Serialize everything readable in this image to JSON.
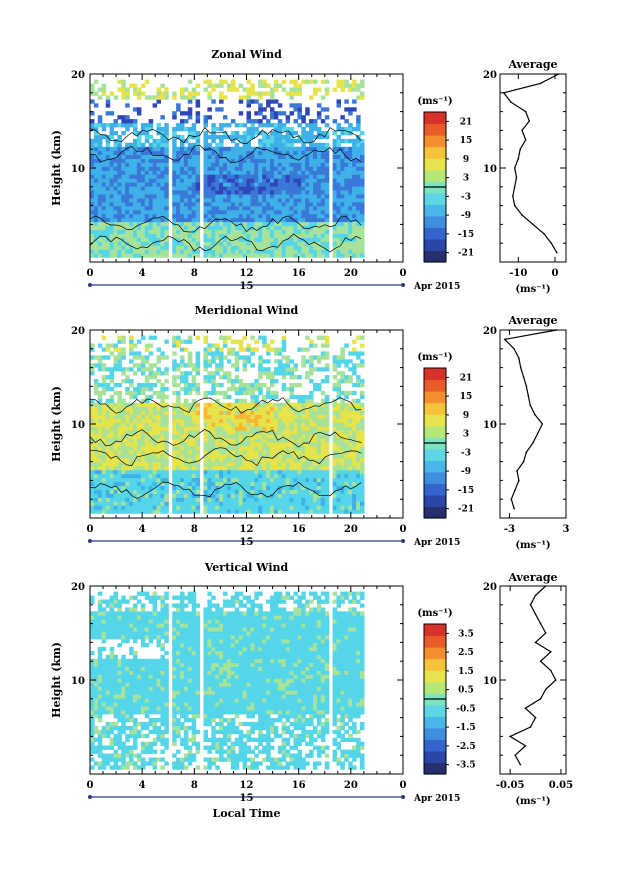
{
  "chart_data": [
    {
      "type": "heatmap",
      "title": "Zonal Wind",
      "ylabel": "Height (km)",
      "ylim": [
        0,
        20
      ],
      "y_ticks": [
        "20",
        "10"
      ],
      "x_ticks": [
        "0",
        "4",
        "8",
        "12",
        "16",
        "20",
        "0"
      ],
      "xlim": [
        0,
        24
      ],
      "date_label": "15",
      "month_label": "Apr 2015",
      "colorbar": {
        "unit_label": "(ms⁻¹)",
        "ticks": [
          "21",
          "15",
          "9",
          "3",
          "-3",
          "-9",
          "-15",
          "-21"
        ],
        "range": [
          -24,
          24
        ]
      },
      "average": {
        "title": "Average",
        "xlabel": "(ms⁻¹)",
        "x_ticks": [
          "-10",
          "0"
        ],
        "xlim": [
          -15,
          3
        ],
        "heights": [
          1,
          2,
          3,
          4,
          5,
          6,
          7,
          8,
          9,
          10,
          11,
          12,
          13,
          14,
          15,
          16,
          17,
          18,
          19,
          20
        ],
        "values": [
          0.5,
          -1,
          -3,
          -6,
          -9,
          -11,
          -11.5,
          -11,
          -10.5,
          -11,
          -10,
          -9.5,
          -8,
          -9,
          -7,
          -8,
          -12,
          -14,
          -4,
          1
        ]
      }
    },
    {
      "type": "heatmap",
      "title": "Meridional Wind",
      "ylabel": "Height (km)",
      "ylim": [
        0,
        20
      ],
      "y_ticks": [
        "20",
        "10"
      ],
      "x_ticks": [
        "0",
        "4",
        "8",
        "12",
        "16",
        "20",
        "0"
      ],
      "xlim": [
        0,
        24
      ],
      "date_label": "15",
      "month_label": "Apr 2015",
      "colorbar": {
        "unit_label": "(ms⁻¹)",
        "ticks": [
          "21",
          "15",
          "9",
          "3",
          "-3",
          "-9",
          "-15",
          "-21"
        ],
        "range": [
          -24,
          24
        ]
      },
      "average": {
        "title": "Average",
        "xlabel": "(ms⁻¹)",
        "x_ticks": [
          "-3",
          "3"
        ],
        "xlim": [
          -4,
          3
        ],
        "heights": [
          1,
          2,
          3,
          4,
          5,
          6,
          7,
          8,
          9,
          10,
          11,
          12,
          13,
          14,
          15,
          16,
          17,
          18,
          19,
          20
        ],
        "values": [
          -2.5,
          -2.8,
          -2.4,
          -2,
          -2.2,
          -1.5,
          -1.2,
          -0.5,
          0,
          0.5,
          -0.3,
          -0.8,
          -1,
          -1.2,
          -1.5,
          -1.8,
          -2,
          -2.5,
          -3.5,
          2
        ]
      }
    },
    {
      "type": "heatmap",
      "title": "Vertical Wind",
      "ylabel": "Height (km)",
      "xlabel": "Local Time",
      "ylim": [
        0,
        20
      ],
      "y_ticks": [
        "20",
        "10"
      ],
      "x_ticks": [
        "0",
        "4",
        "8",
        "12",
        "16",
        "20",
        "0"
      ],
      "xlim": [
        0,
        24
      ],
      "date_label": "15",
      "month_label": "Apr 2015",
      "colorbar": {
        "unit_label": "(ms⁻¹)",
        "ticks": [
          "3.5",
          "2.5",
          "1.5",
          "0.5",
          "-0.5",
          "-1.5",
          "-2.5",
          "-3.5"
        ],
        "range": [
          -4,
          4
        ]
      },
      "average": {
        "title": "Average",
        "xlabel": "(ms⁻¹)",
        "x_ticks": [
          "-0.05",
          "0.05"
        ],
        "xlim": [
          -0.07,
          0.06
        ],
        "heights": [
          1,
          2,
          3,
          4,
          5,
          6,
          7,
          8,
          9,
          10,
          11,
          12,
          13,
          14,
          15,
          16,
          17,
          18,
          19,
          20
        ],
        "values": [
          -0.03,
          -0.04,
          -0.02,
          -0.05,
          -0.01,
          0.0,
          -0.02,
          0.01,
          0.02,
          0.04,
          0.03,
          0.01,
          0.03,
          0.0,
          0.02,
          0.01,
          0.0,
          -0.01,
          0.0,
          0.02
        ]
      }
    }
  ]
}
